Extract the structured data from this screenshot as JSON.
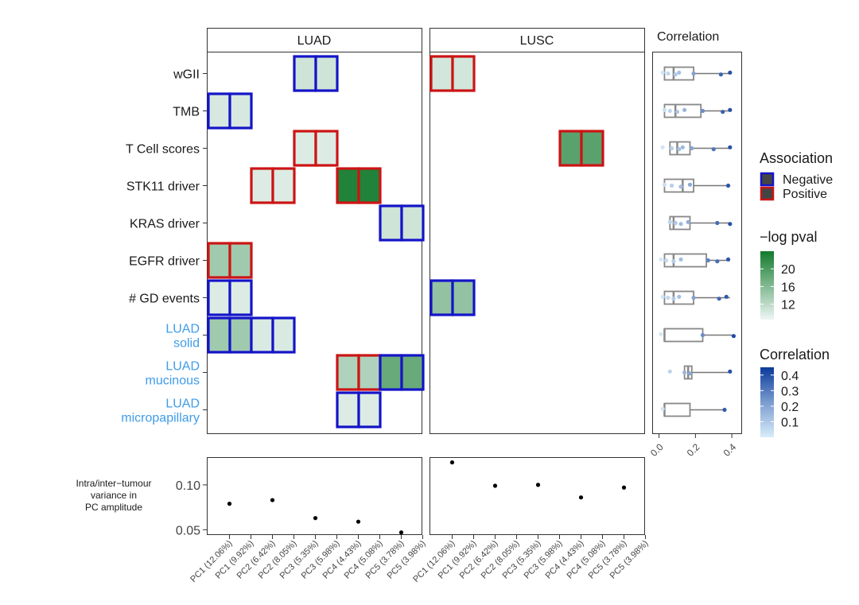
{
  "chart_data": {
    "type": "heatmap",
    "facets": [
      "LUAD",
      "LUSC"
    ],
    "pc_labels": [
      "PC1 (12.06%)",
      "PC1 (9.92%)",
      "PC2 (6.42%)",
      "PC2 (8.05%)",
      "PC3 (5.35%)",
      "PC3 (5.98%)",
      "PC4 (4.43%)",
      "PC4 (5.08%)",
      "PC5 (3.78%)",
      "PC5 (3.98%)"
    ],
    "rows": [
      {
        "label": "wGII",
        "highlight": false
      },
      {
        "label": "TMB",
        "highlight": false
      },
      {
        "label": "T Cell scores",
        "highlight": false
      },
      {
        "label": "STK11 driver",
        "highlight": false
      },
      {
        "label": "KRAS driver",
        "highlight": false
      },
      {
        "label": "EGFR driver",
        "highlight": false
      },
      {
        "label": "# GD events",
        "highlight": false
      },
      {
        "label": "LUAD\nsolid",
        "highlight": true
      },
      {
        "label": "LUAD\nmucinous",
        "highlight": true
      },
      {
        "label": "LUAD\nmicropapillary",
        "highlight": true
      }
    ],
    "cells": [
      {
        "facet": 0,
        "row": 0,
        "col": 4,
        "assoc": "Negative",
        "logp": 10.8
      },
      {
        "facet": 0,
        "row": 0,
        "col": 5,
        "assoc": "Negative",
        "logp": 10.8
      },
      {
        "facet": 0,
        "row": 1,
        "col": 0,
        "assoc": "Negative",
        "logp": 10.2
      },
      {
        "facet": 0,
        "row": 1,
        "col": 1,
        "assoc": "Negative",
        "logp": 10.2
      },
      {
        "facet": 0,
        "row": 2,
        "col": 4,
        "assoc": "Positive",
        "logp": 9.8
      },
      {
        "facet": 0,
        "row": 2,
        "col": 5,
        "assoc": "Positive",
        "logp": 9.8
      },
      {
        "facet": 0,
        "row": 3,
        "col": 2,
        "assoc": "Positive",
        "logp": 9.8
      },
      {
        "facet": 0,
        "row": 3,
        "col": 3,
        "assoc": "Positive",
        "logp": 9.8
      },
      {
        "facet": 0,
        "row": 3,
        "col": 6,
        "assoc": "Positive",
        "logp": 23
      },
      {
        "facet": 0,
        "row": 3,
        "col": 7,
        "assoc": "Positive",
        "logp": 23
      },
      {
        "facet": 0,
        "row": 4,
        "col": 8,
        "assoc": "Negative",
        "logp": 10.8
      },
      {
        "facet": 0,
        "row": 4,
        "col": 9,
        "assoc": "Negative",
        "logp": 10.8
      },
      {
        "facet": 0,
        "row": 5,
        "col": 0,
        "assoc": "Positive",
        "logp": 14
      },
      {
        "facet": 0,
        "row": 5,
        "col": 1,
        "assoc": "Positive",
        "logp": 14
      },
      {
        "facet": 0,
        "row": 6,
        "col": 0,
        "assoc": "Negative",
        "logp": 9.8
      },
      {
        "facet": 0,
        "row": 6,
        "col": 1,
        "assoc": "Negative",
        "logp": 9.8
      },
      {
        "facet": 0,
        "row": 7,
        "col": 0,
        "assoc": "Negative",
        "logp": 14
      },
      {
        "facet": 0,
        "row": 7,
        "col": 1,
        "assoc": "Negative",
        "logp": 14
      },
      {
        "facet": 0,
        "row": 7,
        "col": 2,
        "assoc": "Negative",
        "logp": 10
      },
      {
        "facet": 0,
        "row": 7,
        "col": 3,
        "assoc": "Negative",
        "logp": 10
      },
      {
        "facet": 0,
        "row": 8,
        "col": 6,
        "assoc": "Positive",
        "logp": 13
      },
      {
        "facet": 0,
        "row": 8,
        "col": 7,
        "assoc": "Positive",
        "logp": 13
      },
      {
        "facet": 0,
        "row": 8,
        "col": 8,
        "assoc": "Negative",
        "logp": 18
      },
      {
        "facet": 0,
        "row": 8,
        "col": 9,
        "assoc": "Negative",
        "logp": 18
      },
      {
        "facet": 0,
        "row": 9,
        "col": 6,
        "assoc": "Negative",
        "logp": 9.8
      },
      {
        "facet": 0,
        "row": 9,
        "col": 7,
        "assoc": "Negative",
        "logp": 9.8
      },
      {
        "facet": 1,
        "row": 0,
        "col": 0,
        "assoc": "Positive",
        "logp": 10.5
      },
      {
        "facet": 1,
        "row": 0,
        "col": 1,
        "assoc": "Positive",
        "logp": 10.5
      },
      {
        "facet": 1,
        "row": 2,
        "col": 6,
        "assoc": "Positive",
        "logp": 19
      },
      {
        "facet": 1,
        "row": 2,
        "col": 7,
        "assoc": "Positive",
        "logp": 19
      },
      {
        "facet": 1,
        "row": 6,
        "col": 0,
        "assoc": "Negative",
        "logp": 15
      },
      {
        "facet": 1,
        "row": 6,
        "col": 1,
        "assoc": "Negative",
        "logp": 15
      }
    ],
    "variance_panel": {
      "ylabel": "Intra/inter−tumour\nvariance in\nPC amplitude",
      "yticks": [
        0.05,
        0.1
      ],
      "ytick_labels": [
        "0.05",
        "0.10"
      ],
      "ylim": [
        0.045,
        0.13
      ],
      "luad": [
        0.079,
        null,
        0.083,
        null,
        0.063,
        null,
        0.059,
        null,
        0.047,
        null
      ],
      "lusc": [
        0.125,
        null,
        0.099,
        null,
        0.1,
        null,
        0.086,
        null,
        0.097,
        null
      ]
    },
    "correlation_panel": {
      "title": "Correlation",
      "xlim": [
        -0.02,
        0.43
      ],
      "xticks": [
        0.0,
        0.2,
        0.4
      ],
      "xtick_labels": [
        "0.0",
        "0.2",
        "0.4"
      ],
      "boxes": [
        {
          "q1": 0.03,
          "med": 0.08,
          "q3": 0.19,
          "lo": 0.0,
          "hi": 0.39,
          "pts": [
            0.02,
            0.05,
            0.09,
            0.11,
            0.19,
            0.34,
            0.39
          ]
        },
        {
          "q1": 0.03,
          "med": 0.09,
          "q3": 0.23,
          "lo": 0.0,
          "hi": 0.39,
          "pts": [
            0.03,
            0.06,
            0.1,
            0.14,
            0.24,
            0.35,
            0.39
          ]
        },
        {
          "q1": 0.06,
          "med": 0.1,
          "q3": 0.17,
          "lo": 0.0,
          "hi": 0.39,
          "pts": [
            0.02,
            0.07,
            0.11,
            0.13,
            0.18,
            0.3,
            0.39
          ]
        },
        {
          "q1": 0.03,
          "med": 0.13,
          "q3": 0.19,
          "lo": 0.0,
          "hi": 0.39,
          "pts": [
            0.03,
            0.07,
            0.12,
            0.17,
            0.38
          ]
        },
        {
          "q1": 0.06,
          "med": 0.08,
          "q3": 0.17,
          "lo": 0.0,
          "hi": 0.39,
          "pts": [
            0.06,
            0.09,
            0.12,
            0.16,
            0.32,
            0.39
          ]
        },
        {
          "q1": 0.03,
          "med": 0.08,
          "q3": 0.26,
          "lo": 0.0,
          "hi": 0.39,
          "pts": [
            0.01,
            0.04,
            0.08,
            0.12,
            0.27,
            0.32,
            0.38
          ]
        },
        {
          "q1": 0.03,
          "med": 0.08,
          "q3": 0.19,
          "lo": 0.0,
          "hi": 0.39,
          "pts": [
            0.02,
            0.05,
            0.08,
            0.11,
            0.19,
            0.33,
            0.37
          ]
        },
        {
          "q1": 0.03,
          "med": 0.03,
          "q3": 0.24,
          "lo": 0.0,
          "hi": 0.41,
          "pts": [
            0.01,
            0.24,
            0.41
          ]
        },
        {
          "q1": 0.14,
          "med": 0.16,
          "q3": 0.18,
          "lo": 0.14,
          "hi": 0.39,
          "pts": [
            0.06,
            0.14,
            0.17,
            0.39
          ]
        },
        {
          "q1": 0.03,
          "med": 0.03,
          "q3": 0.17,
          "lo": 0.0,
          "hi": 0.37,
          "pts": [
            0.02,
            0.36
          ]
        }
      ]
    },
    "legend": {
      "association_title": "Association",
      "association_items": [
        "Negative",
        "Positive"
      ],
      "logp_title": "−log pval",
      "logp_range": [
        8.5,
        24
      ],
      "logp_ticks": [
        12,
        16,
        20
      ],
      "corr_title": "Correlation",
      "corr_range": [
        0.0,
        0.45
      ],
      "corr_ticks": [
        0.1,
        0.2,
        0.3,
        0.4
      ],
      "corr_tick_labels": [
        "0.1",
        "0.2",
        "0.3",
        "0.4"
      ]
    },
    "colors": {
      "negative": "#1414c8",
      "positive": "#cc1414",
      "fill_low": "#eef6f5",
      "fill_high": "#137a2c",
      "corr_low": "#d8ecfa",
      "corr_high": "#0a3a9a",
      "highlight_label": "#3f9ce8"
    }
  }
}
